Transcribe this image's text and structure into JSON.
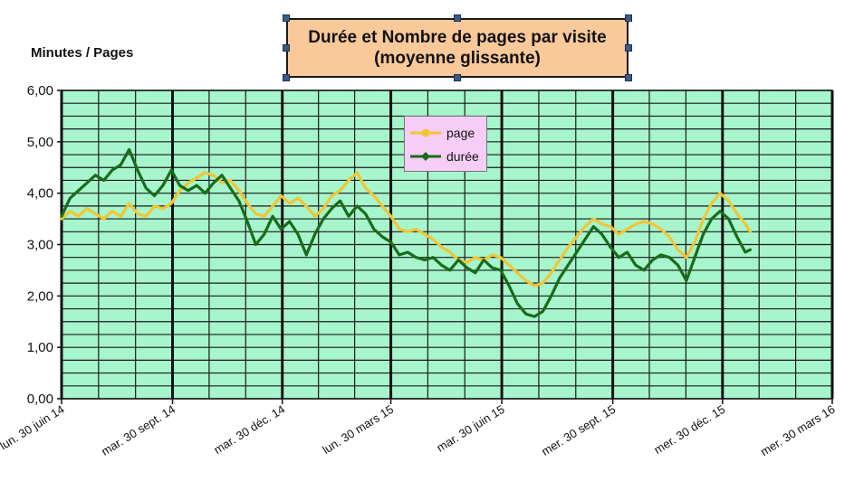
{
  "chart_data": {
    "type": "line",
    "title": "Durée et Nombre de pages par visite",
    "subtitle": "(moyenne glissante)",
    "ylabel": "Minutes / Pages",
    "xlabel": "",
    "ylim": [
      0,
      6
    ],
    "yticks": [
      "0,00",
      "1,00",
      "2,00",
      "3,00",
      "4,00",
      "5,00",
      "6,00"
    ],
    "xlim": [
      "2014-06-30",
      "2016-03-30"
    ],
    "xticks": [
      {
        "date": "2014-06-30",
        "label": "lun. 30 juin 14"
      },
      {
        "date": "2014-09-30",
        "label": "mar. 30 sept. 14"
      },
      {
        "date": "2014-12-30",
        "label": "mar. 30 déc. 14"
      },
      {
        "date": "2015-03-30",
        "label": "lun. 30 mars 15"
      },
      {
        "date": "2015-06-30",
        "label": "mar. 30 juin 15"
      },
      {
        "date": "2015-09-30",
        "label": "mer. 30 sept. 15"
      },
      {
        "date": "2015-12-30",
        "label": "mer. 30 déc. 15"
      },
      {
        "date": "2016-03-30",
        "label": "mer. 30 mars 16"
      }
    ],
    "grid": true,
    "legend_position": "top-center",
    "plot_background": "#a6f5cc",
    "series": [
      {
        "name": "page",
        "color": "#f2c535",
        "marker": "circle",
        "points": [
          [
            "2014-06-30",
            3.5
          ],
          [
            "2014-07-07",
            3.65
          ],
          [
            "2014-07-14",
            3.55
          ],
          [
            "2014-07-21",
            3.7
          ],
          [
            "2014-07-28",
            3.6
          ],
          [
            "2014-08-04",
            3.5
          ],
          [
            "2014-08-11",
            3.65
          ],
          [
            "2014-08-18",
            3.55
          ],
          [
            "2014-08-25",
            3.8
          ],
          [
            "2014-09-01",
            3.6
          ],
          [
            "2014-09-08",
            3.55
          ],
          [
            "2014-09-15",
            3.75
          ],
          [
            "2014-09-22",
            3.7
          ],
          [
            "2014-09-29",
            3.8
          ],
          [
            "2014-10-06",
            4.05
          ],
          [
            "2014-10-13",
            4.2
          ],
          [
            "2014-10-20",
            4.3
          ],
          [
            "2014-10-27",
            4.4
          ],
          [
            "2014-11-03",
            4.35
          ],
          [
            "2014-11-10",
            4.2
          ],
          [
            "2014-11-17",
            4.25
          ],
          [
            "2014-11-24",
            4.05
          ],
          [
            "2014-12-01",
            3.8
          ],
          [
            "2014-12-08",
            3.6
          ],
          [
            "2014-12-15",
            3.55
          ],
          [
            "2014-12-22",
            3.75
          ],
          [
            "2014-12-29",
            3.95
          ],
          [
            "2015-01-05",
            3.8
          ],
          [
            "2015-01-12",
            3.9
          ],
          [
            "2015-01-19",
            3.75
          ],
          [
            "2015-01-26",
            3.55
          ],
          [
            "2015-02-02",
            3.7
          ],
          [
            "2015-02-09",
            3.95
          ],
          [
            "2015-02-16",
            4.05
          ],
          [
            "2015-02-23",
            4.25
          ],
          [
            "2015-03-02",
            4.4
          ],
          [
            "2015-03-09",
            4.1
          ],
          [
            "2015-03-16",
            3.95
          ],
          [
            "2015-03-23",
            3.75
          ],
          [
            "2015-03-30",
            3.55
          ],
          [
            "2015-04-06",
            3.3
          ],
          [
            "2015-04-13",
            3.25
          ],
          [
            "2015-04-20",
            3.3
          ],
          [
            "2015-04-27",
            3.2
          ],
          [
            "2015-05-04",
            3.1
          ],
          [
            "2015-05-11",
            2.95
          ],
          [
            "2015-05-18",
            2.85
          ],
          [
            "2015-05-25",
            2.7
          ],
          [
            "2015-06-01",
            2.65
          ],
          [
            "2015-06-08",
            2.75
          ],
          [
            "2015-06-15",
            2.7
          ],
          [
            "2015-06-22",
            2.8
          ],
          [
            "2015-06-29",
            2.75
          ],
          [
            "2015-07-06",
            2.6
          ],
          [
            "2015-07-13",
            2.45
          ],
          [
            "2015-07-20",
            2.3
          ],
          [
            "2015-07-27",
            2.2
          ],
          [
            "2015-08-03",
            2.25
          ],
          [
            "2015-08-10",
            2.45
          ],
          [
            "2015-08-17",
            2.7
          ],
          [
            "2015-08-24",
            2.95
          ],
          [
            "2015-08-31",
            3.15
          ],
          [
            "2015-09-07",
            3.35
          ],
          [
            "2015-09-14",
            3.5
          ],
          [
            "2015-09-21",
            3.4
          ],
          [
            "2015-09-28",
            3.35
          ],
          [
            "2015-10-05",
            3.2
          ],
          [
            "2015-10-12",
            3.3
          ],
          [
            "2015-10-19",
            3.4
          ],
          [
            "2015-10-26",
            3.45
          ],
          [
            "2015-11-02",
            3.4
          ],
          [
            "2015-11-09",
            3.3
          ],
          [
            "2015-11-16",
            3.15
          ],
          [
            "2015-11-23",
            2.9
          ],
          [
            "2015-11-30",
            2.75
          ],
          [
            "2015-12-07",
            3.05
          ],
          [
            "2015-12-14",
            3.5
          ],
          [
            "2015-12-21",
            3.8
          ],
          [
            "2015-12-28",
            4.0
          ],
          [
            "2016-01-04",
            3.85
          ],
          [
            "2016-01-11",
            3.6
          ],
          [
            "2016-01-18",
            3.4
          ],
          [
            "2016-01-22",
            3.25
          ]
        ]
      },
      {
        "name": "durée",
        "color": "#1a6b1a",
        "marker": "diamond",
        "points": [
          [
            "2014-06-30",
            3.55
          ],
          [
            "2014-07-07",
            3.9
          ],
          [
            "2014-07-14",
            4.05
          ],
          [
            "2014-07-21",
            4.2
          ],
          [
            "2014-07-28",
            4.35
          ],
          [
            "2014-08-04",
            4.25
          ],
          [
            "2014-08-11",
            4.45
          ],
          [
            "2014-08-18",
            4.55
          ],
          [
            "2014-08-25",
            4.85
          ],
          [
            "2014-09-01",
            4.45
          ],
          [
            "2014-09-08",
            4.1
          ],
          [
            "2014-09-15",
            3.95
          ],
          [
            "2014-09-22",
            4.15
          ],
          [
            "2014-09-29",
            4.45
          ],
          [
            "2014-10-06",
            4.15
          ],
          [
            "2014-10-13",
            4.05
          ],
          [
            "2014-10-20",
            4.15
          ],
          [
            "2014-10-27",
            4.0
          ],
          [
            "2014-11-03",
            4.2
          ],
          [
            "2014-11-10",
            4.35
          ],
          [
            "2014-11-17",
            4.1
          ],
          [
            "2014-11-24",
            3.85
          ],
          [
            "2014-12-01",
            3.45
          ],
          [
            "2014-12-08",
            3.0
          ],
          [
            "2014-12-15",
            3.2
          ],
          [
            "2014-12-22",
            3.55
          ],
          [
            "2014-12-29",
            3.3
          ],
          [
            "2015-01-05",
            3.45
          ],
          [
            "2015-01-12",
            3.2
          ],
          [
            "2015-01-19",
            2.8
          ],
          [
            "2015-01-26",
            3.2
          ],
          [
            "2015-02-02",
            3.5
          ],
          [
            "2015-02-09",
            3.7
          ],
          [
            "2015-02-16",
            3.85
          ],
          [
            "2015-02-23",
            3.55
          ],
          [
            "2015-03-02",
            3.75
          ],
          [
            "2015-03-09",
            3.6
          ],
          [
            "2015-03-16",
            3.3
          ],
          [
            "2015-03-23",
            3.15
          ],
          [
            "2015-03-30",
            3.05
          ],
          [
            "2015-04-06",
            2.8
          ],
          [
            "2015-04-13",
            2.85
          ],
          [
            "2015-04-20",
            2.75
          ],
          [
            "2015-04-27",
            2.7
          ],
          [
            "2015-05-04",
            2.75
          ],
          [
            "2015-05-11",
            2.6
          ],
          [
            "2015-05-18",
            2.5
          ],
          [
            "2015-05-25",
            2.7
          ],
          [
            "2015-06-01",
            2.55
          ],
          [
            "2015-06-08",
            2.45
          ],
          [
            "2015-06-15",
            2.7
          ],
          [
            "2015-06-22",
            2.55
          ],
          [
            "2015-06-29",
            2.5
          ],
          [
            "2015-07-06",
            2.2
          ],
          [
            "2015-07-13",
            1.85
          ],
          [
            "2015-07-20",
            1.65
          ],
          [
            "2015-07-27",
            1.6
          ],
          [
            "2015-08-03",
            1.7
          ],
          [
            "2015-08-10",
            2.0
          ],
          [
            "2015-08-17",
            2.35
          ],
          [
            "2015-08-24",
            2.6
          ],
          [
            "2015-08-31",
            2.85
          ],
          [
            "2015-09-07",
            3.1
          ],
          [
            "2015-09-14",
            3.35
          ],
          [
            "2015-09-21",
            3.2
          ],
          [
            "2015-09-28",
            2.95
          ],
          [
            "2015-10-05",
            2.75
          ],
          [
            "2015-10-12",
            2.85
          ],
          [
            "2015-10-19",
            2.6
          ],
          [
            "2015-10-26",
            2.5
          ],
          [
            "2015-11-02",
            2.7
          ],
          [
            "2015-11-09",
            2.8
          ],
          [
            "2015-11-16",
            2.75
          ],
          [
            "2015-11-23",
            2.6
          ],
          [
            "2015-11-30",
            2.3
          ],
          [
            "2015-12-07",
            2.75
          ],
          [
            "2015-12-14",
            3.2
          ],
          [
            "2015-12-21",
            3.5
          ],
          [
            "2015-12-28",
            3.65
          ],
          [
            "2016-01-04",
            3.5
          ],
          [
            "2016-01-11",
            3.15
          ],
          [
            "2016-01-18",
            2.85
          ],
          [
            "2016-01-22",
            2.9
          ]
        ]
      }
    ]
  }
}
